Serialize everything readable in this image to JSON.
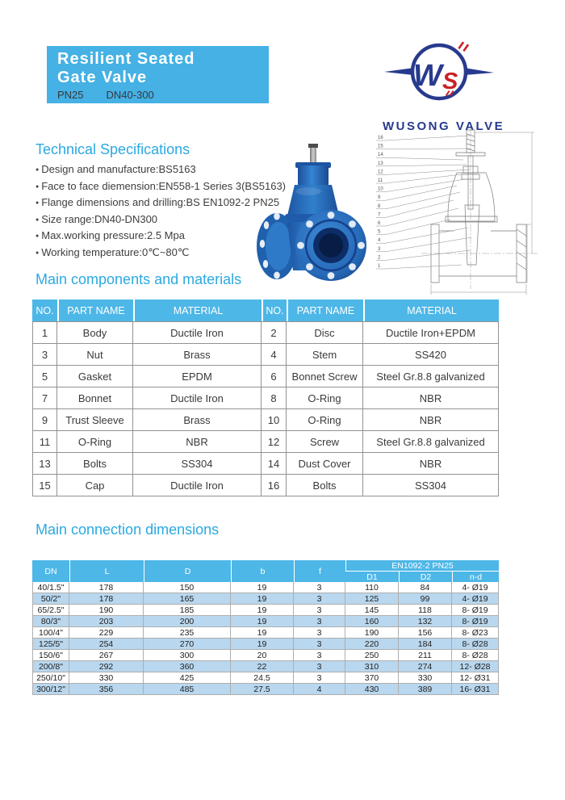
{
  "header": {
    "title_line1": "Resilient Seated",
    "title_line2": "Gate Valve",
    "pn": "PN25",
    "dn": "DN40-300"
  },
  "brand": {
    "name": "WUSONG VALVE",
    "monogram_w": "W",
    "monogram_s": "S"
  },
  "colors": {
    "title_box_cyan": "#45b1e4",
    "table_header_cyan": "#4db7e7",
    "row_stripe_blue": "#b9d7ee",
    "heading_cyan": "#2aa9e1",
    "brand_navy": "#283a8e",
    "brand_red": "#cc2027",
    "valve_blue": "#2f7cc4"
  },
  "specs": {
    "title": "Technical Specifications",
    "items": [
      "Design and manufacture:BS5163",
      "Face to face diemension:EN558-1 Series 3(BS5163)",
      "Flange dimensions and drilling:BS EN1092-2 PN25",
      "Size range:DN40-DN300",
      "Max.working pressure:2.5 Mpa",
      "Working temperature:0℃~80℃"
    ]
  },
  "components": {
    "title": "Main components and materials",
    "headers": [
      "NO.",
      "PART NAME",
      "MATERIAL",
      "NO.",
      "PART NAME",
      "MATERIAL"
    ],
    "rows": [
      [
        "1",
        "Body",
        "Ductile Iron",
        "2",
        "Disc",
        "Ductile Iron+EPDM"
      ],
      [
        "3",
        "Nut",
        "Brass",
        "4",
        "Stem",
        "SS420"
      ],
      [
        "5",
        "Gasket",
        "EPDM",
        "6",
        "Bonnet Screw",
        "Steel Gr.8.8 galvanized"
      ],
      [
        "7",
        "Bonnet",
        "Ductile Iron",
        "8",
        "O-Ring",
        "NBR"
      ],
      [
        "9",
        "Trust Sleeve",
        "Brass",
        "10",
        "O-Ring",
        "NBR"
      ],
      [
        "11",
        "O-Ring",
        "NBR",
        "12",
        "Screw",
        "Steel Gr.8.8 galvanized"
      ],
      [
        "13",
        "Bolts",
        "SS304",
        "14",
        "Dust Cover",
        "NBR"
      ],
      [
        "15",
        "Cap",
        "Ductile Iron",
        "16",
        "Bolts",
        "SS304"
      ]
    ]
  },
  "dimensions": {
    "title": "Main connection dimensions",
    "headers": {
      "main": [
        "DN",
        "L",
        "D",
        "b",
        "f"
      ],
      "group": "EN1092-2 PN25",
      "sub": [
        "D1",
        "D2",
        "n-d"
      ]
    },
    "rows": [
      [
        "40/1.5\"",
        "178",
        "150",
        "19",
        "3",
        "110",
        "84",
        "4- Ø19"
      ],
      [
        "50/2\"",
        "178",
        "165",
        "19",
        "3",
        "125",
        "99",
        "4- Ø19"
      ],
      [
        "65/2.5\"",
        "190",
        "185",
        "19",
        "3",
        "145",
        "118",
        "8- Ø19"
      ],
      [
        "80/3\"",
        "203",
        "200",
        "19",
        "3",
        "160",
        "132",
        "8- Ø19"
      ],
      [
        "100/4\"",
        "229",
        "235",
        "19",
        "3",
        "190",
        "156",
        "8- Ø23"
      ],
      [
        "125/5\"",
        "254",
        "270",
        "19",
        "3",
        "220",
        "184",
        "8- Ø28"
      ],
      [
        "150/6\"",
        "267",
        "300",
        "20",
        "3",
        "250",
        "211",
        "8- Ø28"
      ],
      [
        "200/8\"",
        "292",
        "360",
        "22",
        "3",
        "310",
        "274",
        "12- Ø28"
      ],
      [
        "250/10\"",
        "330",
        "425",
        "24.5",
        "3",
        "370",
        "330",
        "12- Ø31"
      ],
      [
        "300/12\"",
        "356",
        "485",
        "27.5",
        "4",
        "430",
        "389",
        "16- Ø31"
      ]
    ]
  },
  "drawing": {
    "callouts": [
      "16",
      "15",
      "14",
      "13",
      "12",
      "11",
      "10",
      "9",
      "8",
      "7",
      "6",
      "5",
      "4",
      "3",
      "2",
      "1"
    ]
  }
}
